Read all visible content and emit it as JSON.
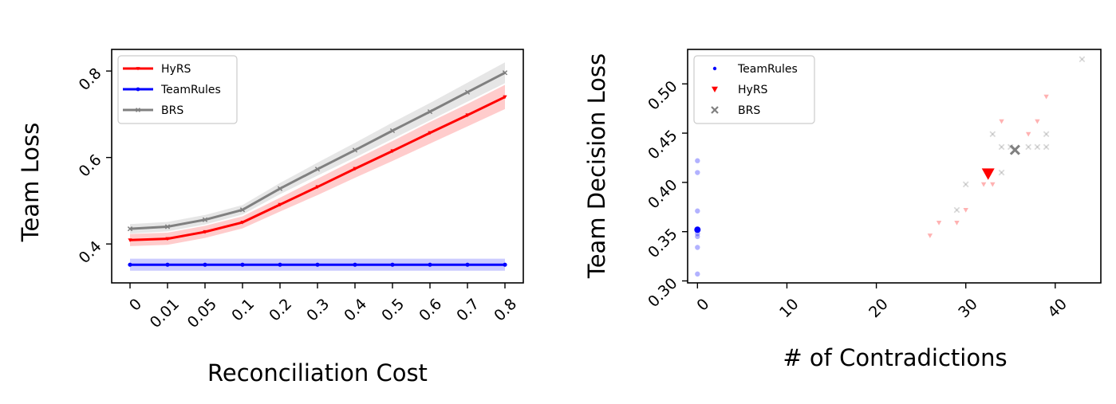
{
  "chart_data": [
    {
      "type": "line",
      "title": "",
      "xlabel": "Reconciliation Cost",
      "ylabel": "Team Loss",
      "categories": [
        "0",
        "0.01",
        "0.05",
        "0.1",
        "0.2",
        "0.3",
        "0.4",
        "0.5",
        "0.6",
        "0.7",
        "0.8"
      ],
      "ylim": [
        0.31,
        0.85
      ],
      "yticks": [
        "0.4",
        "0.6",
        "0.8"
      ],
      "ytick_values": [
        0.4,
        0.6,
        0.8
      ],
      "legend_position": "upper left",
      "series": [
        {
          "name": "HyRS",
          "color": "#ff0000",
          "marker": "triangle-down",
          "values": [
            0.409,
            0.412,
            0.428,
            0.45,
            0.491,
            0.532,
            0.574,
            0.615,
            0.657,
            0.698,
            0.74
          ],
          "band_low": [
            0.395,
            0.398,
            0.414,
            0.436,
            0.475,
            0.513,
            0.553,
            0.592,
            0.632,
            0.672,
            0.712
          ],
          "band_high": [
            0.423,
            0.426,
            0.442,
            0.464,
            0.507,
            0.551,
            0.595,
            0.638,
            0.682,
            0.724,
            0.768
          ]
        },
        {
          "name": "TeamRules",
          "color": "#0000ff",
          "marker": "point",
          "values": [
            0.352,
            0.352,
            0.352,
            0.352,
            0.352,
            0.352,
            0.352,
            0.352,
            0.352,
            0.352,
            0.352
          ],
          "band_low": [
            0.338,
            0.338,
            0.338,
            0.338,
            0.338,
            0.338,
            0.338,
            0.338,
            0.338,
            0.338,
            0.338
          ],
          "band_high": [
            0.366,
            0.366,
            0.366,
            0.366,
            0.366,
            0.366,
            0.366,
            0.366,
            0.366,
            0.366,
            0.366
          ]
        },
        {
          "name": "BRS",
          "color": "#808080",
          "marker": "x",
          "values": [
            0.435,
            0.44,
            0.456,
            0.479,
            0.528,
            0.573,
            0.617,
            0.662,
            0.706,
            0.751,
            0.796
          ],
          "band_low": [
            0.424,
            0.429,
            0.445,
            0.468,
            0.515,
            0.558,
            0.6,
            0.643,
            0.686,
            0.729,
            0.772
          ],
          "band_high": [
            0.446,
            0.451,
            0.467,
            0.49,
            0.541,
            0.588,
            0.634,
            0.681,
            0.726,
            0.773,
            0.82
          ]
        }
      ]
    },
    {
      "type": "scatter",
      "title": "",
      "xlabel": "# of Contradictions",
      "ylabel": "Team Decision Loss",
      "xlim": [
        -1.1,
        45.1
      ],
      "ylim": [
        0.298,
        0.535
      ],
      "xticks": [
        "0",
        "10",
        "20",
        "30",
        "40"
      ],
      "xtick_values": [
        0,
        10,
        20,
        30,
        40
      ],
      "yticks": [
        "0.30",
        "0.35",
        "0.40",
        "0.45",
        "0.50"
      ],
      "ytick_values": [
        0.3,
        0.35,
        0.4,
        0.45,
        0.5
      ],
      "legend_position": "upper left",
      "series": [
        {
          "name": "TeamRules",
          "color": "#0000ff",
          "marker": "point",
          "points": [
            [
              0,
              0.422
            ],
            [
              0,
              0.41
            ],
            [
              0,
              0.371
            ],
            [
              0,
              0.348
            ],
            [
              0,
              0.345
            ],
            [
              0,
              0.334
            ],
            [
              0,
              0.307
            ]
          ],
          "mean": [
            0,
            0.352
          ]
        },
        {
          "name": "HyRS",
          "color": "#ff0000",
          "marker": "triangle-down",
          "points": [
            [
              26,
              0.346
            ],
            [
              27,
              0.359
            ],
            [
              29,
              0.359
            ],
            [
              30,
              0.372
            ],
            [
              32,
              0.398
            ],
            [
              33,
              0.398
            ],
            [
              34,
              0.462
            ],
            [
              37,
              0.449
            ],
            [
              38,
              0.462
            ],
            [
              39,
              0.487
            ]
          ],
          "mean": [
            32.5,
            0.409
          ]
        },
        {
          "name": "BRS",
          "color": "#808080",
          "marker": "x",
          "points": [
            [
              29,
              0.372
            ],
            [
              30,
              0.398
            ],
            [
              33,
              0.449
            ],
            [
              34,
              0.436
            ],
            [
              34,
              0.41
            ],
            [
              35,
              0.436
            ],
            [
              37,
              0.436
            ],
            [
              38,
              0.436
            ],
            [
              39,
              0.436
            ],
            [
              39,
              0.449
            ],
            [
              43,
              0.525
            ]
          ],
          "mean": [
            35.5,
            0.433
          ]
        }
      ]
    }
  ]
}
